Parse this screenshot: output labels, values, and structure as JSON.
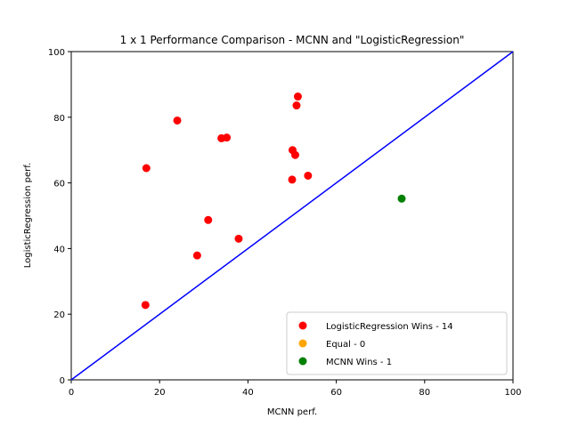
{
  "chart_data": {
    "type": "scatter",
    "title": "1 x 1 Performance Comparison - MCNN and \"LogisticRegression\"",
    "xlabel": "MCNN perf.",
    "ylabel": "LogisticRegression perf.",
    "xlim": [
      0,
      100
    ],
    "ylim": [
      0,
      100
    ],
    "xticks": [
      "0",
      "20",
      "40",
      "60",
      "80",
      "100"
    ],
    "yticks": [
      "0",
      "20",
      "40",
      "60",
      "80",
      "100"
    ],
    "grid": false,
    "legend_position": "lower-right",
    "diagonal_line": {
      "from": [
        0,
        0
      ],
      "to": [
        100,
        100
      ],
      "color": "#0000ff"
    },
    "series": [
      {
        "name": "LogisticRegression Wins - 14",
        "color": "#ff0000",
        "points": [
          {
            "x": 16.8,
            "y": 22.8
          },
          {
            "x": 17.0,
            "y": 64.5
          },
          {
            "x": 24.0,
            "y": 79.0
          },
          {
            "x": 28.5,
            "y": 37.9
          },
          {
            "x": 31.0,
            "y": 48.7
          },
          {
            "x": 34.0,
            "y": 73.6
          },
          {
            "x": 35.2,
            "y": 73.8
          },
          {
            "x": 37.9,
            "y": 43.0
          },
          {
            "x": 50.0,
            "y": 61.0
          },
          {
            "x": 50.1,
            "y": 70.0
          },
          {
            "x": 50.7,
            "y": 68.5
          },
          {
            "x": 51.0,
            "y": 83.6
          },
          {
            "x": 51.3,
            "y": 86.3
          },
          {
            "x": 53.6,
            "y": 62.2
          }
        ]
      },
      {
        "name": "Equal - 0",
        "color": "#ffa500",
        "points": []
      },
      {
        "name": "MCNN Wins - 1",
        "color": "#008000",
        "points": [
          {
            "x": 74.8,
            "y": 55.2
          }
        ]
      }
    ]
  }
}
